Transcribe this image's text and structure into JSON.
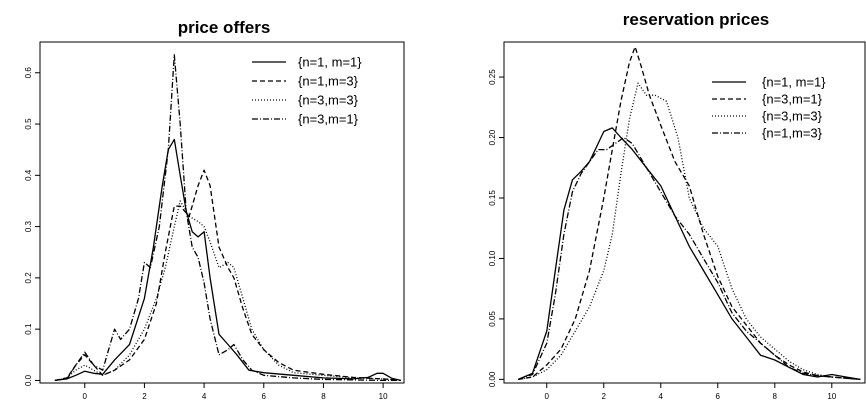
{
  "chart_data": [
    {
      "type": "line",
      "title": "price offers",
      "xlabel": "",
      "ylabel": "",
      "xlim": [
        -1.5,
        10.7
      ],
      "ylim": [
        -0.005,
        0.66
      ],
      "x_ticks": [
        0,
        2,
        4,
        6,
        8,
        10
      ],
      "y_ticks": [
        0.0,
        0.1,
        0.2,
        0.3,
        0.4,
        0.5,
        0.6
      ],
      "y_tick_labels": [
        "0.0",
        "0.1",
        "0.2",
        "0.3",
        "0.4",
        "0.5",
        "0.6"
      ],
      "grid": false,
      "legend_position": "top-right",
      "series": [
        {
          "name": "{n=1, m=1}",
          "style": "solid",
          "x": [
            -1.0,
            -0.6,
            -0.3,
            0.0,
            0.3,
            0.6,
            1.0,
            1.5,
            2.0,
            2.3,
            2.6,
            2.8,
            3.0,
            3.2,
            3.4,
            3.6,
            3.8,
            4.0,
            4.2,
            4.5,
            4.8,
            5.1,
            5.5,
            6.0,
            7.0,
            8.0,
            9.0,
            9.5,
            9.8,
            10.0,
            10.3,
            10.6
          ],
          "y": [
            0.0,
            0.003,
            0.01,
            0.018,
            0.014,
            0.012,
            0.04,
            0.07,
            0.16,
            0.26,
            0.38,
            0.45,
            0.47,
            0.4,
            0.33,
            0.29,
            0.28,
            0.29,
            0.2,
            0.09,
            0.07,
            0.05,
            0.02,
            0.015,
            0.01,
            0.005,
            0.003,
            0.006,
            0.014,
            0.014,
            0.004,
            0.0
          ]
        },
        {
          "name": "{n=1,m=3}",
          "style": "dashed",
          "x": [
            -1.0,
            -0.6,
            -0.3,
            0.0,
            0.3,
            0.6,
            1.0,
            1.5,
            2.0,
            2.4,
            2.7,
            3.0,
            3.2,
            3.5,
            3.8,
            4.0,
            4.2,
            4.5,
            4.8,
            5.0,
            5.3,
            5.6,
            6.0,
            6.5,
            7.0,
            8.0,
            9.0,
            10.0,
            10.6
          ],
          "y": [
            0.0,
            0.005,
            0.03,
            0.05,
            0.03,
            0.01,
            0.02,
            0.04,
            0.08,
            0.15,
            0.25,
            0.34,
            0.34,
            0.32,
            0.38,
            0.41,
            0.38,
            0.26,
            0.22,
            0.2,
            0.14,
            0.09,
            0.06,
            0.035,
            0.02,
            0.012,
            0.006,
            0.003,
            0.0
          ]
        },
        {
          "name": "{n=3,m=3}",
          "style": "dotted",
          "x": [
            -1.0,
            -0.6,
            -0.3,
            0.0,
            0.3,
            0.6,
            1.0,
            1.5,
            2.0,
            2.4,
            2.7,
            3.0,
            3.2,
            3.5,
            3.8,
            4.0,
            4.2,
            4.5,
            4.8,
            5.0,
            5.3,
            5.6,
            6.0,
            6.5,
            7.0,
            8.0,
            9.0,
            10.0,
            10.6
          ],
          "y": [
            0.0,
            0.005,
            0.02,
            0.03,
            0.02,
            0.01,
            0.02,
            0.05,
            0.1,
            0.16,
            0.22,
            0.3,
            0.35,
            0.32,
            0.31,
            0.3,
            0.27,
            0.22,
            0.23,
            0.22,
            0.16,
            0.1,
            0.06,
            0.03,
            0.015,
            0.01,
            0.005,
            0.003,
            0.0
          ]
        },
        {
          "name": "{n=3,m=1}",
          "style": "dashdot",
          "x": [
            -1.0,
            -0.6,
            -0.3,
            0.0,
            0.3,
            0.6,
            0.8,
            1.0,
            1.2,
            1.5,
            1.8,
            2.0,
            2.2,
            2.5,
            2.8,
            3.0,
            3.2,
            3.4,
            3.6,
            3.8,
            4.0,
            4.2,
            4.5,
            4.8,
            5.0,
            5.3,
            5.6,
            6.0,
            7.0,
            8.0,
            9.0,
            10.0,
            10.6
          ],
          "y": [
            0.0,
            0.003,
            0.03,
            0.055,
            0.03,
            0.02,
            0.06,
            0.1,
            0.08,
            0.1,
            0.16,
            0.23,
            0.22,
            0.3,
            0.45,
            0.635,
            0.5,
            0.33,
            0.26,
            0.24,
            0.19,
            0.12,
            0.05,
            0.06,
            0.07,
            0.04,
            0.02,
            0.01,
            0.005,
            0.002,
            0.001,
            0.0,
            0.0
          ]
        }
      ]
    },
    {
      "type": "line",
      "title": "reservation prices",
      "xlabel": "",
      "ylabel": "",
      "xlim": [
        -1.5,
        11.2
      ],
      "ylim": [
        -0.003,
        0.279
      ],
      "x_ticks": [
        0,
        2,
        4,
        6,
        8,
        10
      ],
      "y_ticks": [
        0.0,
        0.05,
        0.1,
        0.15,
        0.2,
        0.25
      ],
      "y_tick_labels": [
        "0.00",
        "0.05",
        "0.10",
        "0.15",
        "0.20",
        "0.25"
      ],
      "grid": false,
      "legend_position": "top-right",
      "series": [
        {
          "name": "{n=1, m=1}",
          "style": "solid",
          "x": [
            -1.0,
            -0.5,
            0.0,
            0.3,
            0.6,
            0.9,
            1.2,
            1.5,
            1.8,
            2.0,
            2.3,
            2.6,
            3.0,
            3.5,
            4.0,
            4.5,
            5.0,
            5.5,
            6.0,
            6.5,
            7.0,
            7.5,
            8.0,
            8.5,
            9.0,
            9.5,
            10.0,
            10.5,
            11.0
          ],
          "y": [
            0.0,
            0.005,
            0.04,
            0.09,
            0.14,
            0.165,
            0.172,
            0.18,
            0.195,
            0.205,
            0.208,
            0.2,
            0.19,
            0.175,
            0.16,
            0.135,
            0.11,
            0.09,
            0.07,
            0.05,
            0.035,
            0.02,
            0.016,
            0.01,
            0.004,
            0.002,
            0.004,
            0.002,
            0.0
          ]
        },
        {
          "name": "{n=3,m=1}",
          "style": "dashed",
          "x": [
            -1.0,
            -0.5,
            0.0,
            0.5,
            1.0,
            1.5,
            2.0,
            2.3,
            2.6,
            2.9,
            3.1,
            3.3,
            3.6,
            4.0,
            4.5,
            5.0,
            5.5,
            6.0,
            6.5,
            7.0,
            7.5,
            8.0,
            8.5,
            9.0,
            9.5,
            10.0,
            10.5,
            11.0
          ],
          "y": [
            0.0,
            0.002,
            0.012,
            0.025,
            0.05,
            0.09,
            0.15,
            0.19,
            0.23,
            0.262,
            0.275,
            0.26,
            0.235,
            0.21,
            0.18,
            0.16,
            0.12,
            0.085,
            0.06,
            0.045,
            0.03,
            0.02,
            0.012,
            0.006,
            0.003,
            0.002,
            0.001,
            0.0
          ]
        },
        {
          "name": "{n=3,m=3}",
          "style": "dotted",
          "x": [
            -1.0,
            -0.5,
            0.0,
            0.5,
            1.0,
            1.5,
            2.0,
            2.3,
            2.6,
            2.9,
            3.2,
            3.5,
            3.8,
            4.2,
            4.6,
            5.0,
            5.5,
            6.0,
            6.5,
            7.0,
            7.5,
            8.0,
            8.5,
            9.0,
            9.5,
            10.0,
            10.5,
            11.0
          ],
          "y": [
            0.0,
            0.002,
            0.008,
            0.02,
            0.04,
            0.06,
            0.09,
            0.12,
            0.17,
            0.215,
            0.245,
            0.235,
            0.235,
            0.23,
            0.2,
            0.15,
            0.125,
            0.11,
            0.075,
            0.05,
            0.035,
            0.025,
            0.015,
            0.008,
            0.004,
            0.002,
            0.001,
            0.0
          ]
        },
        {
          "name": "{n=1,m=3}",
          "style": "dashdot",
          "x": [
            -1.0,
            -0.5,
            0.0,
            0.3,
            0.6,
            0.9,
            1.2,
            1.5,
            1.8,
            2.1,
            2.4,
            2.7,
            3.0,
            3.5,
            4.0,
            4.5,
            5.0,
            5.5,
            6.0,
            6.5,
            7.0,
            7.5,
            8.0,
            8.5,
            9.0,
            9.5,
            10.0,
            10.5,
            11.0
          ],
          "y": [
            0.0,
            0.004,
            0.03,
            0.07,
            0.12,
            0.155,
            0.17,
            0.18,
            0.19,
            0.19,
            0.195,
            0.2,
            0.195,
            0.175,
            0.155,
            0.135,
            0.12,
            0.1,
            0.08,
            0.055,
            0.04,
            0.03,
            0.02,
            0.01,
            0.005,
            0.003,
            0.002,
            0.001,
            0.0
          ]
        }
      ]
    }
  ]
}
